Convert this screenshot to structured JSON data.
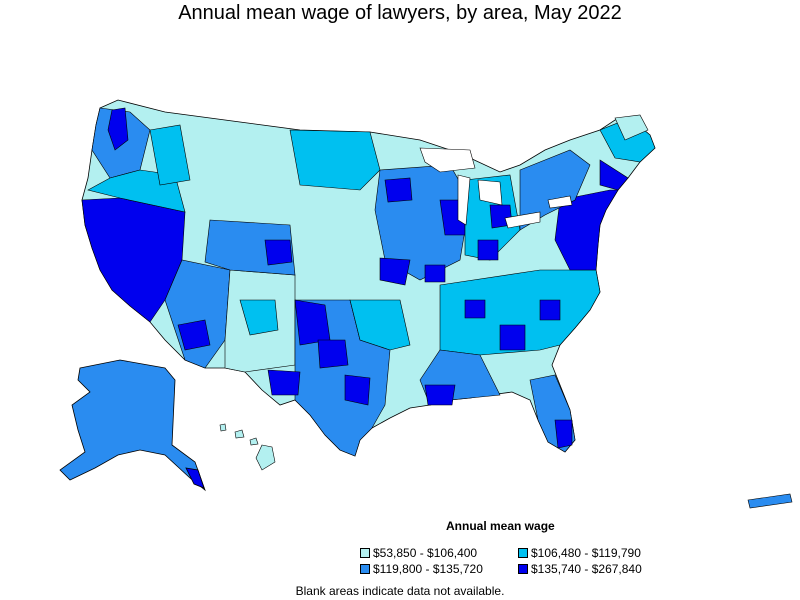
{
  "title": "Annual mean wage of lawyers, by area, May 2022",
  "legend": {
    "title": "Annual mean wage",
    "items": [
      {
        "label": "$53,850 - $106,400",
        "color": "#b3f0f0"
      },
      {
        "label": "$106,480 - $119,790",
        "color": "#00c0f0"
      },
      {
        "label": "$119,800 - $135,720",
        "color": "#2a8cf0"
      },
      {
        "label": "$135,740 - $267,840",
        "color": "#0000ee"
      }
    ]
  },
  "note": "Blank areas indicate data not available."
}
